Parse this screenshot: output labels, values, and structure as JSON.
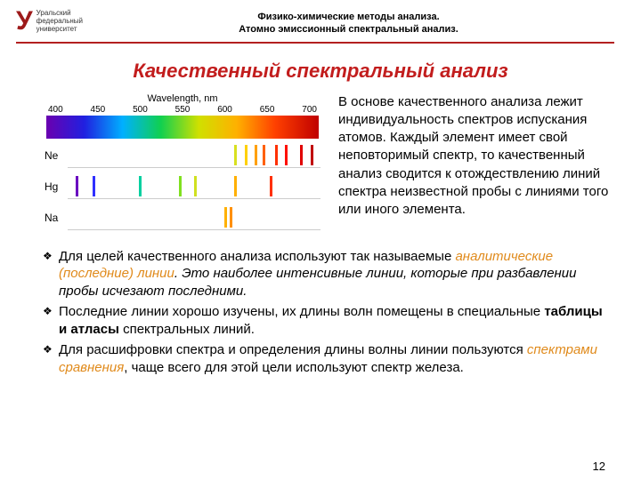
{
  "logo": {
    "letter": "У",
    "line1": "Уральский",
    "line2": "федеральный",
    "line3": "университет"
  },
  "header": {
    "line1": "Физико-химические методы анализа.",
    "line2": "Атомно эмиссионный спектральный анализ."
  },
  "title": "Качественный спектральный анализ",
  "chart": {
    "axis_title": "Wavelength, nm",
    "ticks": [
      "400",
      "450",
      "500",
      "550",
      "600",
      "650",
      "700"
    ],
    "gradient": [
      "#6a00b0",
      "#2020e0",
      "#00b0ff",
      "#10d050",
      "#d0e000",
      "#ffb000",
      "#ff4000",
      "#c00000"
    ],
    "elements": [
      {
        "label": "Ne",
        "lines": [
          {
            "pos": 66,
            "color": "#d8e020"
          },
          {
            "pos": 70,
            "color": "#ffd000"
          },
          {
            "pos": 74,
            "color": "#ffa000"
          },
          {
            "pos": 77,
            "color": "#ff6000"
          },
          {
            "pos": 82,
            "color": "#ff3000"
          },
          {
            "pos": 86,
            "color": "#ff1000"
          },
          {
            "pos": 92,
            "color": "#e00000"
          },
          {
            "pos": 96,
            "color": "#c00000"
          }
        ]
      },
      {
        "label": "Hg",
        "lines": [
          {
            "pos": 3,
            "color": "#6a00c0"
          },
          {
            "pos": 10,
            "color": "#3030ff"
          },
          {
            "pos": 28,
            "color": "#00d0a0"
          },
          {
            "pos": 44,
            "color": "#80e020"
          },
          {
            "pos": 50,
            "color": "#d0e020"
          },
          {
            "pos": 66,
            "color": "#ffb000"
          },
          {
            "pos": 80,
            "color": "#ff3000"
          }
        ]
      },
      {
        "label": "Na",
        "lines": [
          {
            "pos": 62,
            "color": "#ffb000"
          },
          {
            "pos": 64,
            "color": "#ff9000"
          }
        ]
      }
    ]
  },
  "paragraph": "В основе качественного анализа лежит индивидуальность спектров испускания атомов.  Каждый элемент имеет свой неповторимый спектр, то качественный анализ сводится к отождествлению линий спектра неизвестной пробы с линиями того или иного элемента.",
  "bullets": {
    "b1_a": " Для целей качественного анализа используют так называемые ",
    "b1_b": "аналитические (последние) линии",
    "b1_c": ". Это наиболее интенсивные линии, которые при разбавлении пробы исчезают последними.",
    "b2_a": "Последние линии хорошо изучены, их длины волн помещены в специальные ",
    "b2_b": "таблицы и атласы",
    "b2_c": " спектральных линий.",
    "b3_a": "Для расшифровки спектра и определения длины волны линии пользуются  ",
    "b3_b": "спектрами сравнения",
    "b3_c": ", чаще всего для этой цели используют спектр железа."
  },
  "page": "12"
}
